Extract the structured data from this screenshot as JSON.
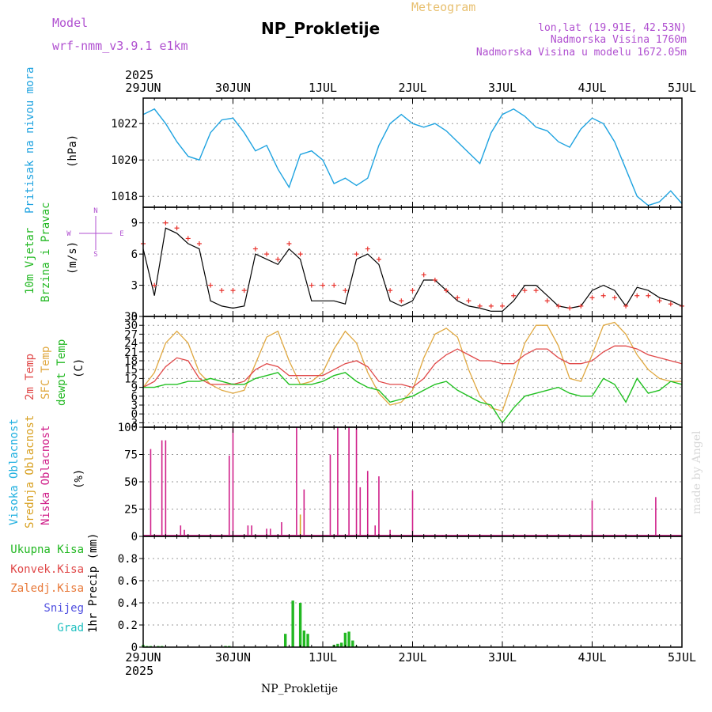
{
  "header": {
    "model_label": "Model",
    "model_name": "wrf-nmm_v3.9.1 e1km",
    "product": "Meteogram",
    "station": "NP_Prokletije",
    "coords": "lon,lat (19.91E, 42.53N)",
    "elev": "Nadmorska Visina 1760m",
    "elev_model": "Nadmorska Visina u modelu 1672.05m",
    "year": "2025",
    "footer_station": "NP_Prokletije",
    "credit": "made by Angel"
  },
  "colors": {
    "pressure": "#1fa3e0",
    "wind_speed": "#000000",
    "gust": "#e8322c",
    "temp2m": "#e04848",
    "sfc": "#e0a840",
    "dewpt": "#22c022",
    "low_cloud": "#d0208a",
    "mid_cloud": "#d8a020",
    "high_cloud": "#20b0e0",
    "precip": "#22b822",
    "convective": "#e04848",
    "frozen": "#e87838",
    "snow": "#5050e0",
    "graupel": "#20c0c0",
    "model_text": "#b050d0",
    "product_text": "#e8c070"
  },
  "panels": {
    "pressure": {
      "label": "Pritisak na nivou mora",
      "unit": "(hPa)"
    },
    "wind": {
      "label1": "10m Vjetar",
      "label2": "Brzina i Pravac",
      "unit": "(m/s)",
      "compass": {
        "n": "N",
        "w": "W",
        "e": "E",
        "s": "S"
      }
    },
    "temp": {
      "label1": "2m Temp",
      "label2": "SFC Temp",
      "label3": "dewpt Temp",
      "unit": "(C)"
    },
    "cloud": {
      "label1": "Visoka Oblacnost",
      "label2": "Srednja Oblacnost",
      "label3": "Niska Oblacnost",
      "unit": "(%)"
    },
    "precip": {
      "unit": "1hr Precip (mm)",
      "legend": [
        "Ukupna Kisa",
        "Konvek.Kisa",
        "Zaledj.Kisa",
        "Snijeg",
        "Grad"
      ]
    }
  },
  "chart_data": [
    {
      "type": "line",
      "name": "pressure",
      "x_unit": "hours from 2025-06-29 00 UTC",
      "x_ticks": [
        "29JUN",
        "30JUN",
        "1JUL",
        "2JUL",
        "3JUL",
        "4JUL",
        "5JUL"
      ],
      "ylim": [
        1017.4,
        1023.4
      ],
      "y_ticks": [
        "1018",
        "1020",
        "1022"
      ],
      "grid": true,
      "series": [
        {
          "name": "Pritisak na nivou mora",
          "unit": "hPa",
          "x": [
            0,
            3,
            6,
            9,
            12,
            15,
            18,
            21,
            24,
            27,
            30,
            33,
            36,
            39,
            42,
            45,
            48,
            51,
            54,
            57,
            60,
            63,
            66,
            69,
            72,
            75,
            78,
            81,
            84,
            87,
            90,
            93,
            96,
            99,
            102,
            105,
            108,
            111,
            114,
            117,
            120,
            123,
            126,
            129,
            132,
            135,
            138,
            141,
            144
          ],
          "y": [
            1022.5,
            1022.8,
            1022.0,
            1021.0,
            1020.2,
            1020.0,
            1021.5,
            1022.2,
            1022.3,
            1021.5,
            1020.5,
            1020.8,
            1019.5,
            1018.5,
            1020.3,
            1020.5,
            1020.0,
            1018.7,
            1019.0,
            1018.6,
            1019.0,
            1020.8,
            1022.0,
            1022.5,
            1022.0,
            1021.8,
            1022.0,
            1021.6,
            1021.0,
            1020.4,
            1019.8,
            1021.5,
            1022.5,
            1022.8,
            1022.4,
            1021.8,
            1021.6,
            1021.0,
            1020.7,
            1021.7,
            1022.3,
            1022.0,
            1021.0,
            1019.5,
            1018.0,
            1017.5,
            1017.7,
            1018.3,
            1017.6
          ]
        }
      ]
    },
    {
      "type": "line",
      "name": "wind",
      "ylim": [
        0,
        10.5
      ],
      "y_ticks": [
        "0",
        "3",
        "6",
        "9"
      ],
      "grid": true,
      "series": [
        {
          "name": "speed",
          "x": [
            0,
            3,
            6,
            9,
            12,
            15,
            18,
            21,
            24,
            27,
            30,
            33,
            36,
            39,
            42,
            45,
            48,
            51,
            54,
            57,
            60,
            63,
            66,
            69,
            72,
            75,
            78,
            81,
            84,
            87,
            90,
            93,
            96,
            99,
            102,
            105,
            108,
            111,
            114,
            117,
            120,
            123,
            126,
            129,
            132,
            135,
            138,
            141,
            144
          ],
          "y": [
            6.5,
            2.0,
            8.5,
            8.0,
            7.0,
            6.5,
            1.5,
            1.0,
            0.8,
            1.0,
            6.0,
            5.5,
            5.0,
            6.5,
            5.5,
            1.5,
            1.5,
            1.5,
            1.2,
            5.5,
            6.0,
            5.0,
            1.5,
            1.0,
            1.5,
            3.5,
            3.5,
            2.5,
            1.5,
            1.0,
            0.8,
            0.5,
            0.5,
            1.5,
            3.0,
            3.0,
            2.0,
            1.0,
            0.8,
            1.0,
            2.5,
            3.0,
            2.5,
            1.0,
            2.8,
            2.5,
            1.8,
            1.5,
            1.0
          ]
        },
        {
          "name": "gust",
          "x": [
            0,
            3,
            6,
            9,
            12,
            15,
            18,
            21,
            24,
            27,
            30,
            33,
            36,
            39,
            42,
            45,
            48,
            51,
            54,
            57,
            60,
            63,
            66,
            69,
            72,
            75,
            78,
            81,
            84,
            87,
            90,
            93,
            96,
            99,
            102,
            105,
            108,
            111,
            114,
            117,
            120,
            123,
            126,
            129,
            132,
            135,
            138,
            141,
            144
          ],
          "y": [
            7.0,
            3.0,
            9.0,
            8.5,
            7.5,
            7.0,
            3.0,
            2.5,
            2.5,
            2.5,
            6.5,
            6.0,
            5.5,
            7.0,
            6.0,
            3.0,
            3.0,
            3.0,
            2.5,
            6.0,
            6.5,
            5.5,
            2.5,
            1.5,
            2.5,
            4.0,
            3.5,
            2.5,
            1.8,
            1.5,
            1.0,
            1.0,
            1.0,
            2.0,
            2.5,
            2.5,
            1.5,
            1.0,
            0.8,
            1.0,
            1.8,
            2.0,
            1.8,
            1.0,
            2.0,
            2.0,
            1.5,
            1.2,
            1.0
          ]
        }
      ]
    },
    {
      "type": "line",
      "name": "temperature",
      "ylim": [
        -4.5,
        33
      ],
      "y_ticks": [
        "-3",
        "0",
        "3",
        "6",
        "9",
        "12",
        "15",
        "18",
        "21",
        "24",
        "27",
        "30",
        "33"
      ],
      "grid": true,
      "series": [
        {
          "name": "2m Temp",
          "x": [
            0,
            3,
            6,
            9,
            12,
            15,
            18,
            21,
            24,
            27,
            30,
            33,
            36,
            39,
            42,
            45,
            48,
            51,
            54,
            57,
            60,
            63,
            66,
            69,
            72,
            75,
            78,
            81,
            84,
            87,
            90,
            93,
            96,
            99,
            102,
            105,
            108,
            111,
            114,
            117,
            120,
            123,
            126,
            129,
            132,
            135,
            138,
            141,
            144
          ],
          "y": [
            9,
            11,
            16,
            19,
            18,
            12,
            10,
            10,
            10,
            11,
            15,
            17,
            16,
            13,
            13,
            13,
            13,
            15,
            17,
            18,
            16,
            11,
            10,
            10,
            9,
            12,
            17,
            20,
            22,
            20,
            18,
            18,
            17,
            17,
            20,
            22,
            22,
            19,
            17,
            17,
            18,
            21,
            23,
            23,
            22,
            20,
            19,
            18,
            17
          ]
        },
        {
          "name": "SFC Temp",
          "x": [
            0,
            3,
            6,
            9,
            12,
            15,
            18,
            21,
            24,
            27,
            30,
            33,
            36,
            39,
            42,
            45,
            48,
            51,
            54,
            57,
            60,
            63,
            66,
            69,
            72,
            75,
            78,
            81,
            84,
            87,
            90,
            93,
            96,
            99,
            102,
            105,
            108,
            111,
            114,
            117,
            120,
            123,
            126,
            129,
            132,
            135,
            138,
            141,
            144
          ],
          "y": [
            9,
            14,
            24,
            28,
            24,
            14,
            10,
            8,
            7,
            8,
            17,
            26,
            28,
            18,
            10,
            11,
            14,
            22,
            28,
            24,
            14,
            7,
            3,
            4,
            8,
            19,
            27,
            29,
            26,
            15,
            6,
            2,
            1,
            12,
            24,
            30,
            30,
            23,
            12,
            11,
            20,
            30,
            31,
            27,
            20,
            15,
            12,
            11,
            11
          ]
        },
        {
          "name": "dewpt Temp",
          "x": [
            0,
            3,
            6,
            9,
            12,
            15,
            18,
            21,
            24,
            27,
            30,
            33,
            36,
            39,
            42,
            45,
            48,
            51,
            54,
            57,
            60,
            63,
            66,
            69,
            72,
            75,
            78,
            81,
            84,
            87,
            90,
            93,
            96,
            99,
            102,
            105,
            108,
            111,
            114,
            117,
            120,
            123,
            126,
            129,
            132,
            135,
            138,
            141,
            144
          ],
          "y": [
            9,
            9,
            10,
            10,
            11,
            11,
            12,
            11,
            10,
            10,
            12,
            13,
            14,
            10,
            10,
            10,
            11,
            13,
            14,
            11,
            9,
            8,
            4,
            5,
            6,
            8,
            10,
            11,
            8,
            6,
            4,
            3,
            -3,
            2,
            6,
            7,
            8,
            9,
            7,
            6,
            6,
            12,
            10,
            4,
            12,
            7,
            8,
            11,
            10
          ]
        }
      ]
    },
    {
      "type": "bar",
      "name": "cloud",
      "ylim": [
        0,
        100
      ],
      "y_ticks": [
        "0",
        "25",
        "50",
        "75",
        "100"
      ],
      "grid": true,
      "series": [
        {
          "name": "Niska Oblacnost",
          "x": [
            2,
            5,
            6,
            10,
            11,
            23,
            24,
            28,
            29,
            33,
            34,
            37,
            41,
            43,
            50,
            52,
            55,
            57,
            58,
            60,
            62,
            63,
            66,
            72,
            80
          ],
          "y": [
            80,
            88,
            88,
            10,
            6,
            74,
            100,
            10,
            10,
            7,
            7,
            13,
            100,
            43,
            75,
            100,
            100,
            100,
            45,
            60,
            10,
            55,
            6,
            42,
            0
          ]
        },
        {
          "name": "Srednja Oblacnost",
          "x": [
            42
          ],
          "y": [
            20
          ]
        },
        {
          "name": "Visoka Oblacnost",
          "x": [],
          "y": []
        },
        {
          "name": "Niska Oblacnost (late)",
          "x": [
            120,
            137
          ],
          "y": [
            33,
            36
          ]
        }
      ]
    },
    {
      "type": "bar",
      "name": "precip",
      "ylim": [
        0,
        1.0
      ],
      "y_ticks": [
        "0",
        "0.2",
        "0.4",
        "0.6",
        "0.8"
      ],
      "grid": true,
      "series": [
        {
          "name": "Ukupna Kisa",
          "x": [
            0,
            1,
            2,
            4,
            5,
            22,
            23,
            38,
            40,
            42,
            43,
            44,
            51,
            52,
            53,
            54,
            55,
            56,
            57
          ],
          "y": [
            0.02,
            0.01,
            0.01,
            0.01,
            0.01,
            0.01,
            0.01,
            0.12,
            0.42,
            0.4,
            0.15,
            0.12,
            0.02,
            0.03,
            0.04,
            0.13,
            0.14,
            0.06,
            0.01
          ]
        }
      ]
    }
  ]
}
